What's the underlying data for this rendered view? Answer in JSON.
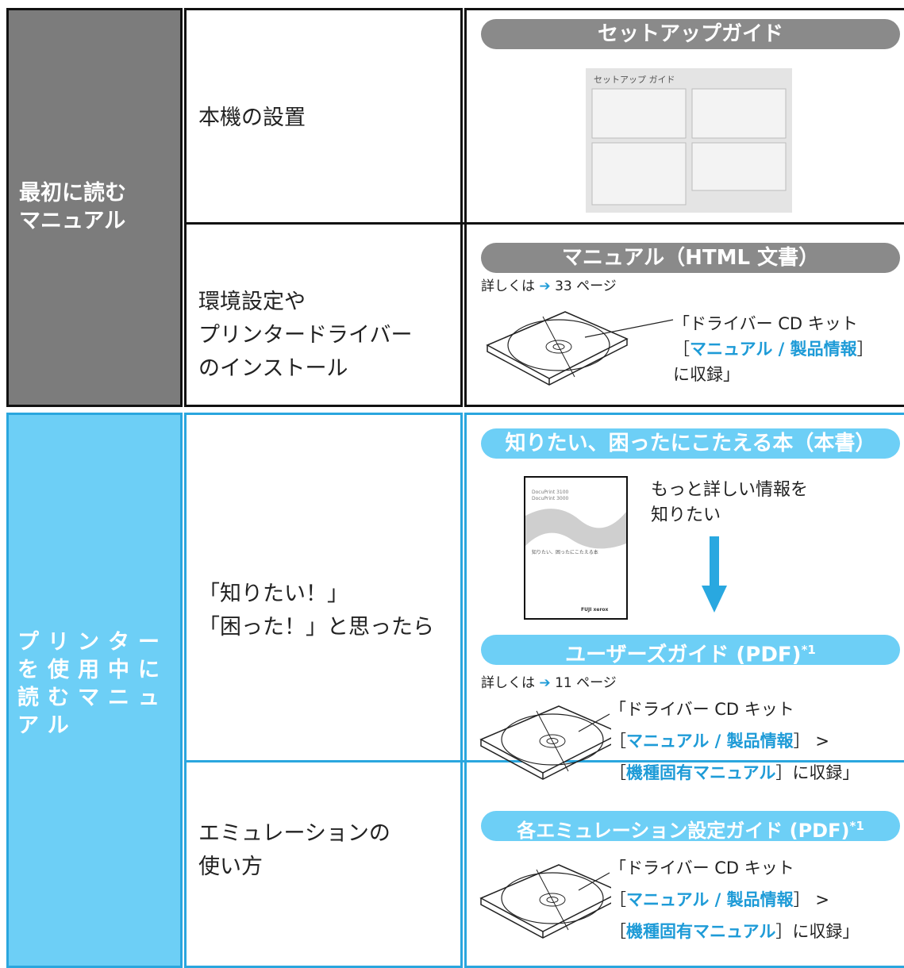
{
  "first": {
    "title": [
      "最初に読む",
      "マニュアル"
    ],
    "setup": {
      "label": "本機の設置",
      "guide": "セットアップガイド",
      "thumb_title": "セットアップ ガイド"
    },
    "install": {
      "label": [
        "環境設定や",
        "プリンタードライバー",
        "のインストール"
      ],
      "guide": "マニュアル（HTML 文書）",
      "ref": [
        "詳しくは",
        "➔",
        "33 ページ"
      ],
      "cd": [
        "「ドライバー CD キット",
        "［",
        "マニュアル / 製品情報",
        "］",
        "に収録」"
      ]
    }
  },
  "during": {
    "title": [
      "プリンター",
      "を使用中に",
      "読むマニュ",
      "アル"
    ],
    "trouble": {
      "label": [
        "「知りたい！」",
        "「困った！」と思ったら"
      ],
      "guide": "知りたい、困ったにこたえる本（本書）",
      "book": [
        "DocuPrint 3100",
        "DocuPrint 3000",
        "知りたい、困ったにこたえる本",
        "FUJI xerox"
      ],
      "note": [
        "もっと詳しい情報を",
        "知りたい"
      ],
      "guide2": [
        "ユーザーズガイド (PDF)",
        "*1"
      ],
      "ref": [
        "詳しくは",
        "➔",
        "11 ページ"
      ],
      "cd": [
        "「ドライバー CD キット",
        "［",
        "マニュアル / 製品情報",
        "］ >",
        "［",
        "機種固有マニュアル",
        "］に収録」"
      ]
    },
    "emulation": {
      "label": [
        "エミュレーションの",
        "使い方"
      ],
      "guide": [
        "各エミュレーション設定ガイド (PDF)",
        "*1"
      ],
      "cd": [
        "「ドライバー CD キット",
        "［",
        "マニュアル / 製品情報",
        "］ >",
        "［",
        "機種固有マニュアル",
        "］に収録」"
      ]
    }
  }
}
